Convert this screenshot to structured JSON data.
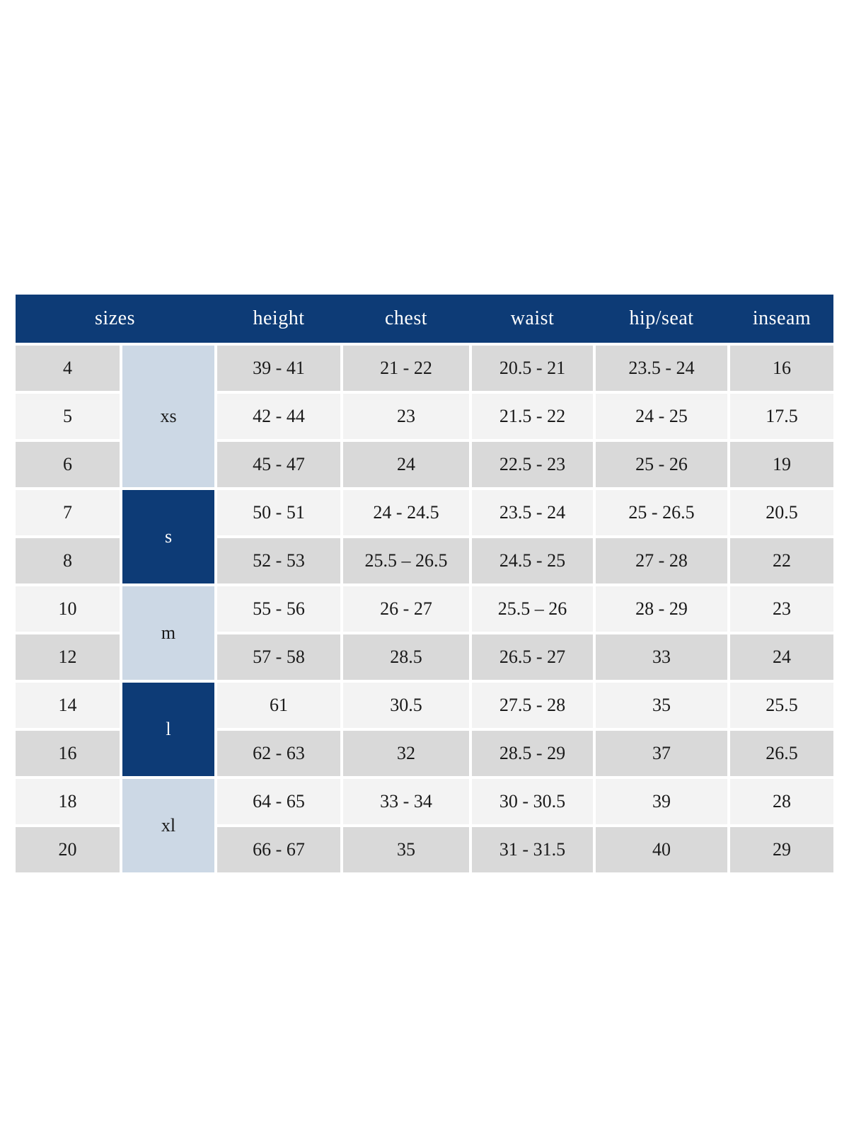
{
  "chart_data": {
    "type": "table",
    "header": {
      "sizes_label": "sizes",
      "measures": [
        "height",
        "chest",
        "waist",
        "hip/seat",
        "inseam"
      ]
    },
    "size_groups": [
      {
        "label": "xs",
        "style": "light",
        "start_size": "4",
        "span": 3
      },
      {
        "label": "s",
        "style": "dark",
        "start_size": "7",
        "span": 2
      },
      {
        "label": "m",
        "style": "light",
        "start_size": "10",
        "span": 2
      },
      {
        "label": "l",
        "style": "dark",
        "start_size": "14",
        "span": 2
      },
      {
        "label": "xl",
        "style": "light",
        "start_size": "18",
        "span": 2
      }
    ],
    "rows": [
      {
        "size": "4",
        "group": "xs",
        "height": "39 - 41",
        "chest": "21 - 22",
        "waist": "20.5 - 21",
        "hip_seat": "23.5 - 24",
        "inseam": "16"
      },
      {
        "size": "5",
        "group": "xs",
        "height": "42 - 44",
        "chest": "23",
        "waist": "21.5 - 22",
        "hip_seat": "24 - 25",
        "inseam": "17.5"
      },
      {
        "size": "6",
        "group": "xs",
        "height": "45 - 47",
        "chest": "24",
        "waist": "22.5 - 23",
        "hip_seat": "25 - 26",
        "inseam": "19"
      },
      {
        "size": "7",
        "group": "s",
        "height": "50 - 51",
        "chest": "24 - 24.5",
        "waist": "23.5 - 24",
        "hip_seat": "25 - 26.5",
        "inseam": "20.5"
      },
      {
        "size": "8",
        "group": "s",
        "height": "52 - 53",
        "chest": "25.5 – 26.5",
        "waist": "24.5 - 25",
        "hip_seat": "27 - 28",
        "inseam": "22"
      },
      {
        "size": "10",
        "group": "m",
        "height": "55 - 56",
        "chest": "26 - 27",
        "waist": "25.5 – 26",
        "hip_seat": "28 - 29",
        "inseam": "23"
      },
      {
        "size": "12",
        "group": "m",
        "height": "57 - 58",
        "chest": "28.5",
        "waist": "26.5 - 27",
        "hip_seat": "33",
        "inseam": "24"
      },
      {
        "size": "14",
        "group": "l",
        "height": "61",
        "chest": "30.5",
        "waist": "27.5 - 28",
        "hip_seat": "35",
        "inseam": "25.5"
      },
      {
        "size": "16",
        "group": "l",
        "height": "62 - 63",
        "chest": "32",
        "waist": "28.5 - 29",
        "hip_seat": "37",
        "inseam": "26.5"
      },
      {
        "size": "18",
        "group": "xl",
        "height": "64 - 65",
        "chest": "33 - 34",
        "waist": "30 - 30.5",
        "hip_seat": "39",
        "inseam": "28"
      },
      {
        "size": "20",
        "group": "xl",
        "height": "66 - 67",
        "chest": "35",
        "waist": "31 - 31.5",
        "hip_seat": "40",
        "inseam": "29"
      }
    ],
    "colors": {
      "header_bg": "#0d3b76",
      "header_text": "#ffffff",
      "group_light_bg": "#ccd8e5",
      "group_dark_bg": "#0d3b76",
      "row_a_bg": "#d9d9d9",
      "row_b_bg": "#f3f3f3",
      "body_text": "#1a1a1a",
      "page_bg": "#ffffff"
    }
  }
}
